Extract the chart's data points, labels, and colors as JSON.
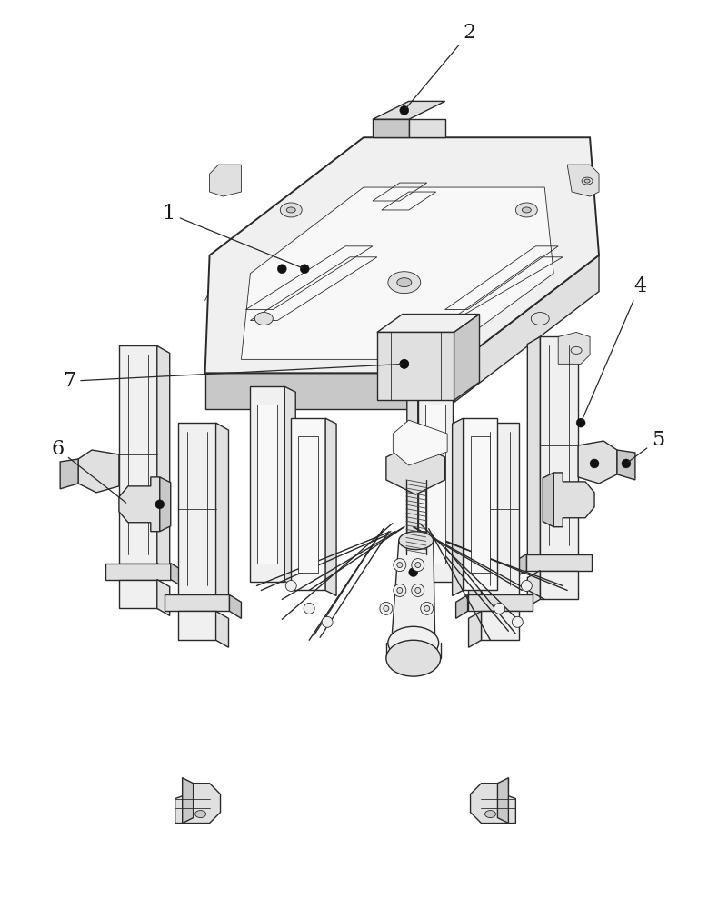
{
  "bg_color": "#ffffff",
  "lc": "#2a2a2a",
  "lc_thin": "#444444",
  "fc_light": "#f0f0f0",
  "fc_mid": "#e0e0e0",
  "fc_dark": "#c8c8c8",
  "fc_very_light": "#f8f8f8",
  "label_color": "#1a1a1a",
  "figsize": [
    7.79,
    10.0
  ],
  "dpi": 100,
  "lw_main": 1.0,
  "lw_thin": 0.6,
  "lw_thick": 1.4
}
